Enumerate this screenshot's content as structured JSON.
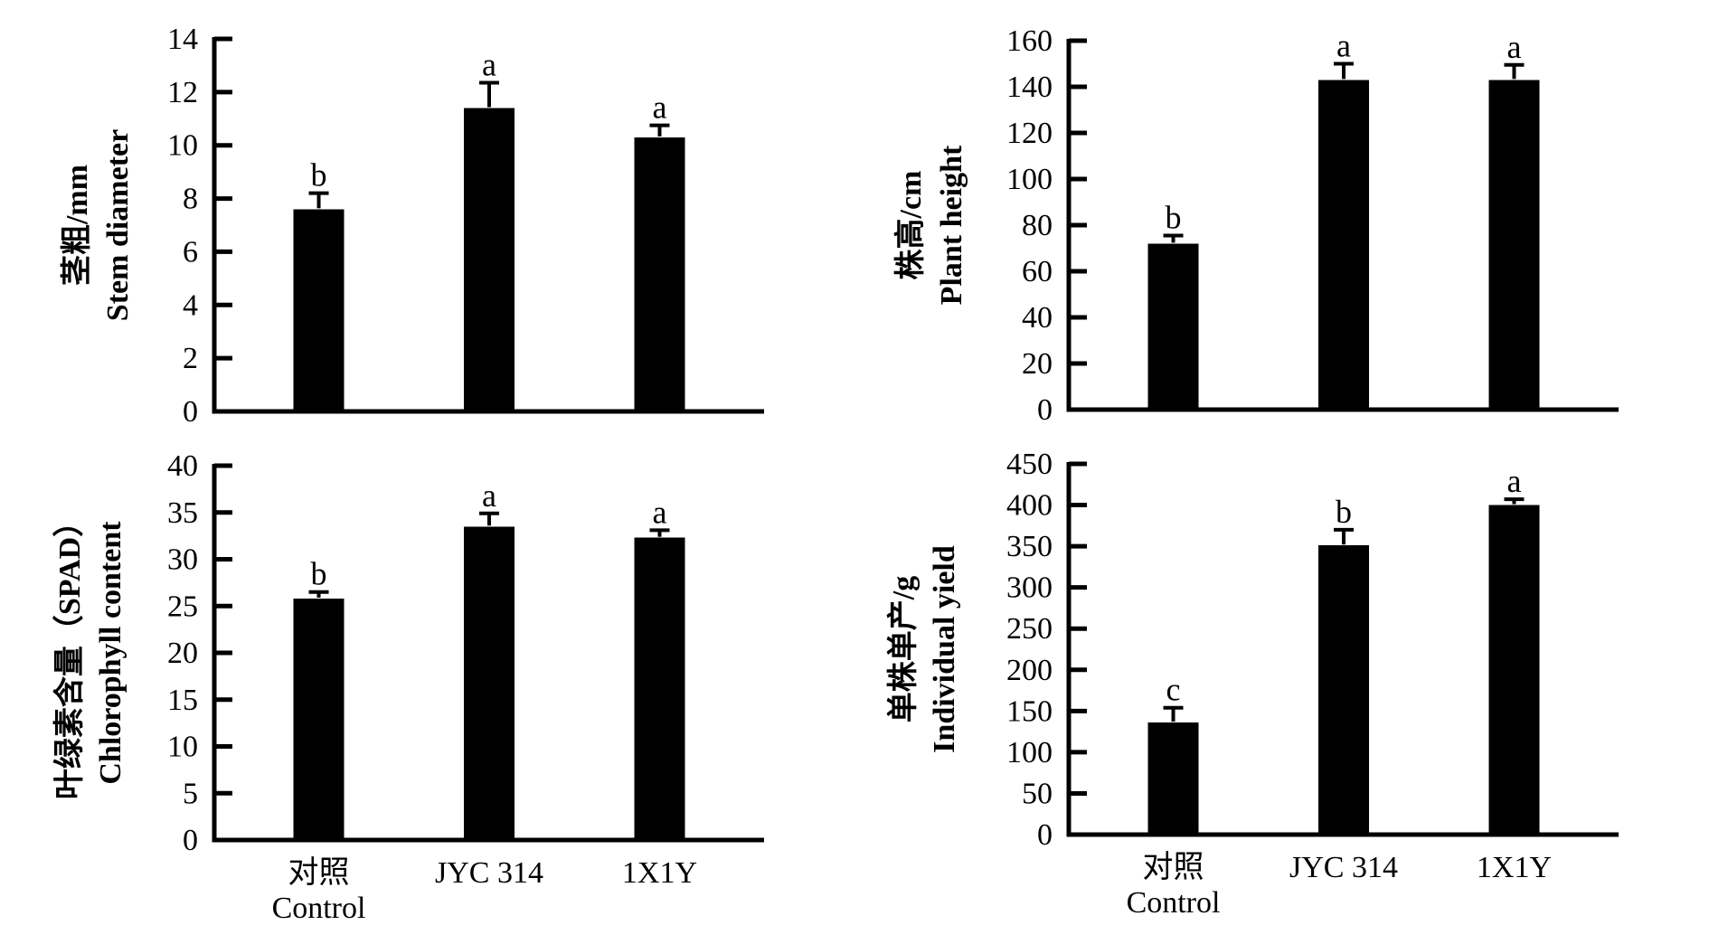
{
  "figure": {
    "background_color": "#ffffff",
    "bar_color": "#000000",
    "axis_color": "#000000",
    "error_bar_color": "#000000"
  },
  "categories": [
    {
      "line1": "对照",
      "line2": "Control"
    },
    {
      "line1": "JYC 314",
      "line2": ""
    },
    {
      "line1": "1X1Y",
      "line2": ""
    }
  ],
  "chart_data": [
    {
      "id": "stem-diameter",
      "type": "bar",
      "position": "top-left",
      "ylabel_cn": "茎粗/mm",
      "ylabel_en": "Stem diameter",
      "xlabel": "",
      "ylim": [
        0,
        14
      ],
      "ytick_step": 2,
      "ytick_labels": [
        "0",
        "2",
        "4",
        "6",
        "8",
        "10",
        "12",
        "14"
      ],
      "categories": [
        "对照 Control",
        "JYC 314",
        "1X1Y"
      ],
      "values": [
        7.6,
        11.4,
        10.3
      ],
      "errors": [
        0.6,
        0.95,
        0.45
      ],
      "sig_letters": [
        "b",
        "a",
        "a"
      ],
      "legend": "none",
      "grid": false,
      "show_x_labels": false
    },
    {
      "id": "plant-height",
      "type": "bar",
      "position": "top-right",
      "ylabel_cn": "株高/cm",
      "ylabel_en": "Plant height",
      "xlabel": "",
      "ylim": [
        0,
        160
      ],
      "ytick_step": 20,
      "ytick_labels": [
        "0",
        "20",
        "40",
        "60",
        "80",
        "100",
        "120",
        "140",
        "160"
      ],
      "categories": [
        "对照 Control",
        "JYC 314",
        "1X1Y"
      ],
      "values": [
        72,
        143,
        143
      ],
      "errors": [
        3.5,
        7,
        6.5
      ],
      "sig_letters": [
        "b",
        "a",
        "a"
      ],
      "legend": "none",
      "grid": false,
      "show_x_labels": false
    },
    {
      "id": "chlorophyll-content",
      "type": "bar",
      "position": "bottom-left",
      "ylabel_cn": "叶绿素含量（SPAD）",
      "ylabel_en": "Chlorophyll content",
      "xlabel": "",
      "ylim": [
        0,
        40
      ],
      "ytick_step": 5,
      "ytick_labels": [
        "0",
        "5",
        "10",
        "15",
        "20",
        "25",
        "30",
        "35",
        "40"
      ],
      "categories": [
        "对照 Control",
        "JYC 314",
        "1X1Y"
      ],
      "values": [
        25.8,
        33.5,
        32.3
      ],
      "errors": [
        0.7,
        1.4,
        0.8
      ],
      "sig_letters": [
        "b",
        "a",
        "a"
      ],
      "legend": "none",
      "grid": false,
      "show_x_labels": true
    },
    {
      "id": "individual-yield",
      "type": "bar",
      "position": "bottom-right",
      "ylabel_cn": "单株单产/g",
      "ylabel_en": "Individual yield",
      "xlabel": "",
      "ylim": [
        0,
        450
      ],
      "ytick_step": 50,
      "ytick_labels": [
        "0",
        "50",
        "100",
        "150",
        "200",
        "250",
        "300",
        "350",
        "400",
        "450"
      ],
      "categories": [
        "对照 Control",
        "JYC 314",
        "1X1Y"
      ],
      "values": [
        136,
        351,
        400
      ],
      "errors": [
        18,
        19,
        7
      ],
      "sig_letters": [
        "c",
        "b",
        "a"
      ],
      "legend": "none",
      "grid": false,
      "show_x_labels": true
    }
  ]
}
